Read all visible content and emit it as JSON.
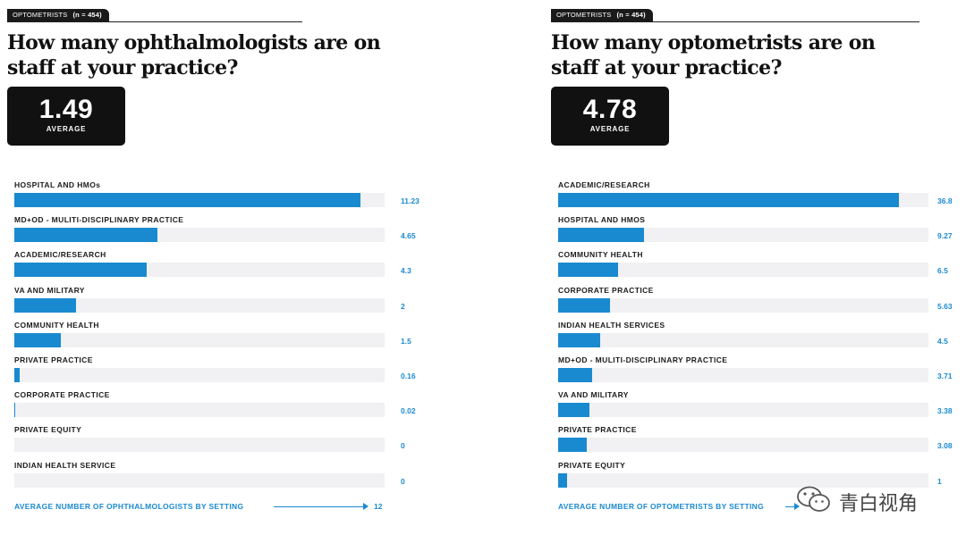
{
  "left": {
    "tag": {
      "label": "OPTOMETRISTS",
      "n": "(n = 454)"
    },
    "question": "How many ophthalmologists are on staff at your practice?",
    "average": {
      "value": "1.49",
      "label": "AVERAGE"
    },
    "footer": {
      "caption": "AVERAGE NUMBER OF OPHTHALMOLOGISTS BY SETTING",
      "max_label": "12"
    }
  },
  "right": {
    "tag": {
      "label": "OPTOMETRISTS",
      "n": "(n = 454)"
    },
    "question": "How many optometrists are on staff at your practice?",
    "average": {
      "value": "4.78",
      "label": "AVERAGE"
    },
    "footer": {
      "caption": "AVERAGE NUMBER OF OPTOMETRISTS BY SETTING"
    }
  },
  "watermark": {
    "text": "青白视角",
    "icon": "wechat-icon"
  },
  "colors": {
    "bar": "#1a8ad0",
    "track": "#f1f1f3",
    "box": "#111111"
  },
  "chart_data": [
    {
      "type": "bar",
      "orientation": "horizontal",
      "title": "AVERAGE NUMBER OF OPHTHALMOLOGISTS BY SETTING",
      "categories": [
        "HOSPITAL AND HMOs",
        "MD+OD - MULITI-DISCIPLINARY PRACTICE",
        "ACADEMIC/RESEARCH",
        "VA AND MILITARY",
        "COMMUNITY HEALTH",
        "PRIVATE PRACTICE",
        "CORPORATE PRACTICE",
        "PRIVATE EQUITY",
        "INDIAN HEALTH SERVICE"
      ],
      "values": [
        11.23,
        4.65,
        4.3,
        2,
        1.5,
        0.16,
        0.02,
        0,
        0
      ],
      "value_labels": [
        "11.23",
        "4.65",
        "4.3",
        "2",
        "1.5",
        "0.16",
        "0.02",
        "0",
        "0"
      ],
      "xlim": [
        0,
        12
      ]
    },
    {
      "type": "bar",
      "orientation": "horizontal",
      "title": "AVERAGE NUMBER OF OPTOMETRISTS BY SETTING",
      "categories": [
        "ACADEMIC/RESEARCH",
        "HOSPITAL AND HMOS",
        "COMMUNITY HEALTH",
        "CORPORATE PRACTICE",
        "INDIAN HEALTH SERVICES",
        "MD+OD - MULITI-DISCIPLINARY PRACTICE",
        "VA AND MILITARY",
        "PRIVATE PRACTICE",
        "PRIVATE EQUITY"
      ],
      "values": [
        36.8,
        9.27,
        6.5,
        5.63,
        4.5,
        3.71,
        3.38,
        3.08,
        1
      ],
      "value_labels": [
        "36.8",
        "9.27",
        "6.5",
        "5.63",
        "4.5",
        "3.71",
        "3.38",
        "3.08",
        "1"
      ],
      "xlim": [
        0,
        40
      ]
    }
  ]
}
